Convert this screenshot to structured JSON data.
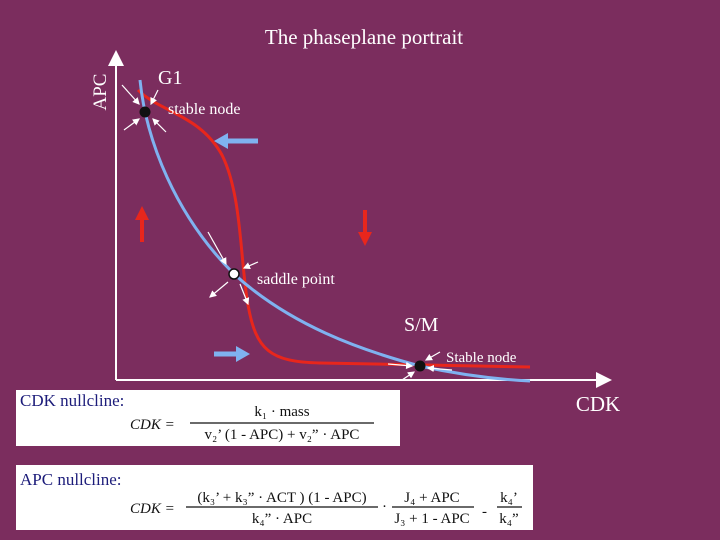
{
  "title": "The phaseplane portrait",
  "axes": {
    "y_label": "APC",
    "x_label": "CDK"
  },
  "points": [
    {
      "label": "G1",
      "note": "stable node"
    },
    {
      "label": "saddle point"
    },
    {
      "label": "S/M",
      "note": "Stable node"
    }
  ],
  "cdk_nullcline": {
    "label": "CDK nullcline:",
    "lhs": "CDK =",
    "numerator": "k₁ · mass",
    "denominator": "v₂’ (1 - APC) + v₂” · APC"
  },
  "apc_nullcline": {
    "label": "APC nullcline:",
    "lhs": "CDK =",
    "numerator1": "(k₃’ + k₃” · ACT ) (1 - APC)",
    "denominator1": "k₄” · APC",
    "dot": "·",
    "numerator2": "J₄ + APC",
    "denominator2": "J₃ + 1 - APC",
    "minus": "-",
    "numerator3": "k₄’",
    "denominator3": "k₄”"
  }
}
